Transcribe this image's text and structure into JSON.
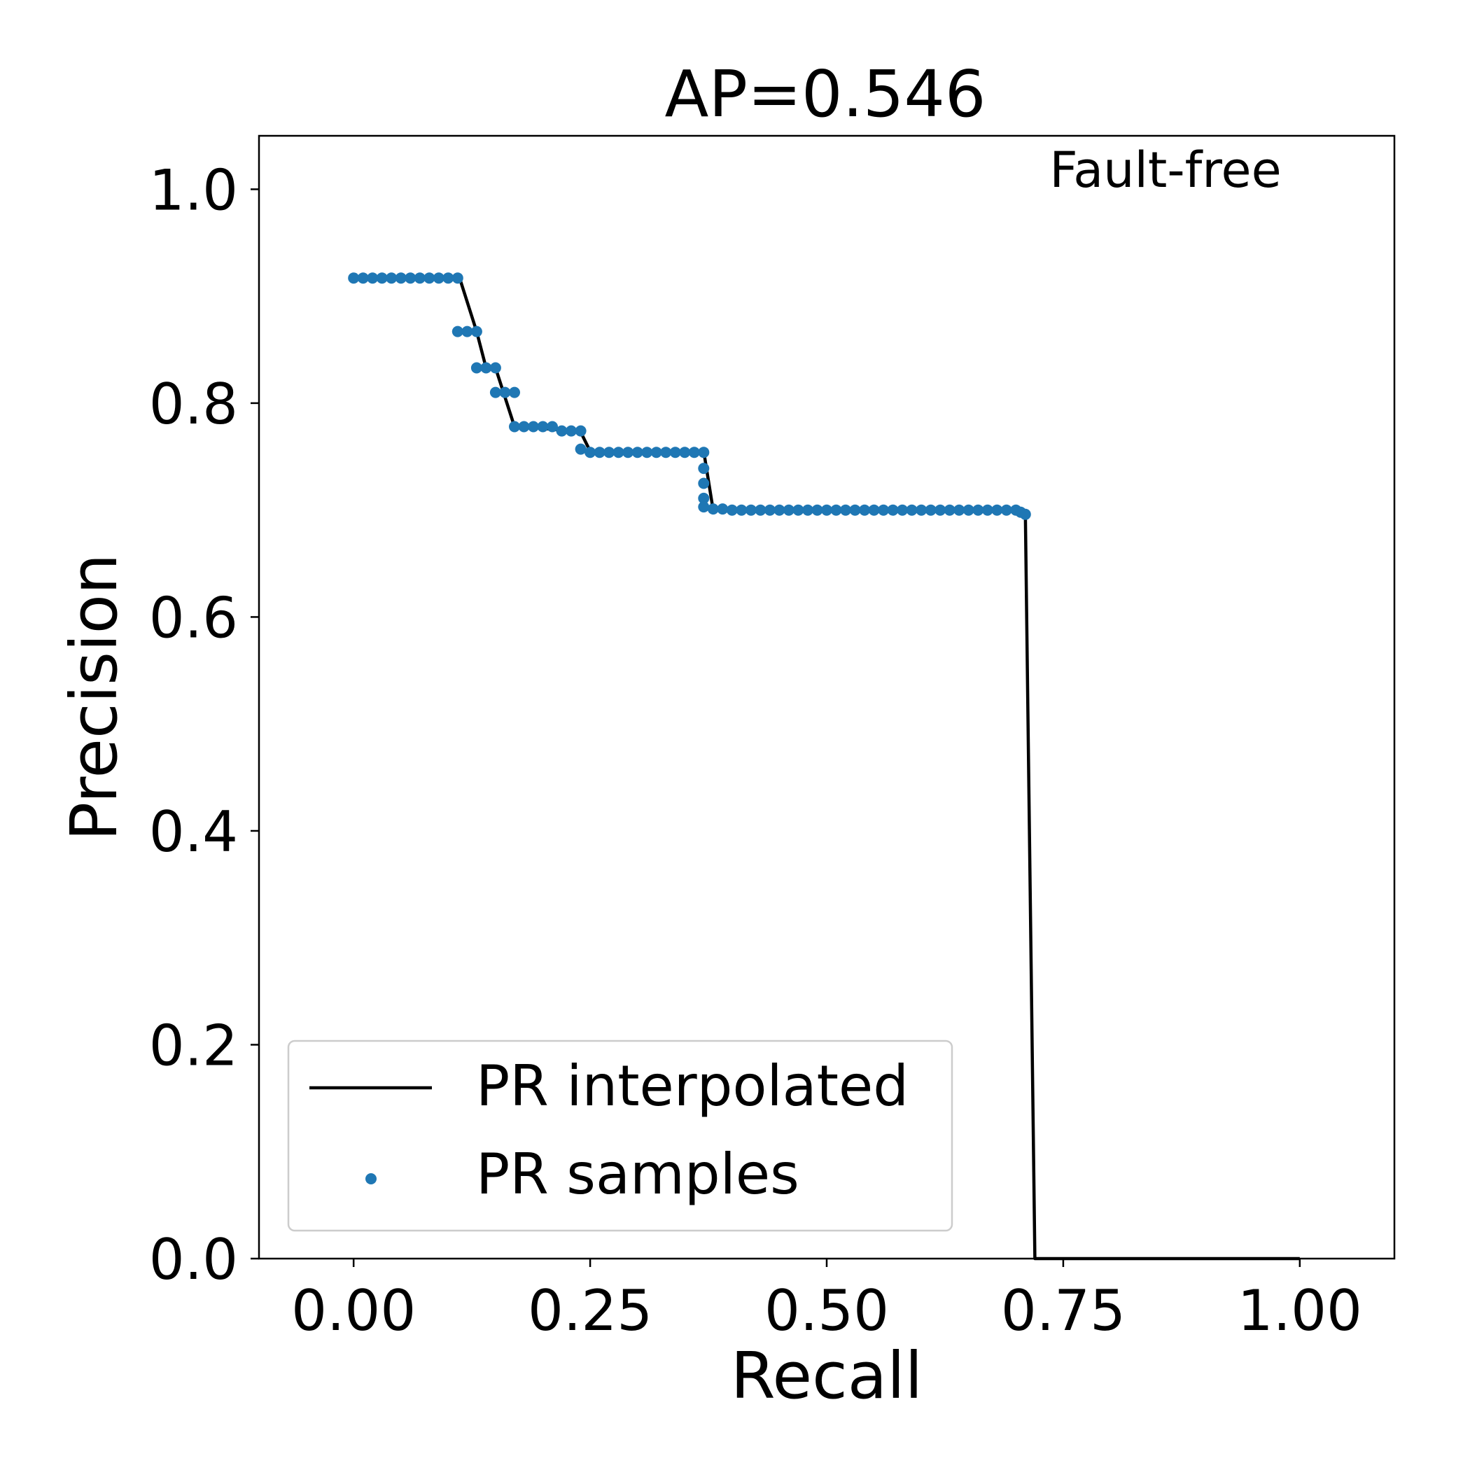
{
  "chart_data": {
    "type": "line",
    "title": "AP=0.546",
    "xlabel": "Recall",
    "ylabel": "Precision",
    "annotation": "Fault-free",
    "xlim": [
      -0.1,
      1.1
    ],
    "ylim": [
      0.0,
      1.05
    ],
    "xticks": [
      0.0,
      0.25,
      0.5,
      0.75,
      1.0
    ],
    "xtick_labels": [
      "0.00",
      "0.25",
      "0.50",
      "0.75",
      "1.00"
    ],
    "yticks": [
      0.0,
      0.2,
      0.4,
      0.6,
      0.8,
      1.0
    ],
    "ytick_labels": [
      "0.0",
      "0.2",
      "0.4",
      "0.6",
      "0.8",
      "1.0"
    ],
    "grid": false,
    "legend_position": "lower-left",
    "series": [
      {
        "name": "PR interpolated",
        "style": "line",
        "color": "#000000",
        "x": [
          0.0,
          0.11,
          0.112,
          0.13,
          0.14,
          0.15,
          0.17,
          0.18,
          0.24,
          0.25,
          0.37,
          0.38,
          0.7,
          0.71,
          0.72,
          1.0
        ],
        "y": [
          0.917,
          0.917,
          0.917,
          0.867,
          0.833,
          0.833,
          0.778,
          0.778,
          0.773,
          0.755,
          0.755,
          0.7,
          0.7,
          0.697,
          0.0,
          0.0
        ]
      },
      {
        "name": "PR samples",
        "style": "scatter",
        "color": "#1f77b4",
        "x": [
          0.0,
          0.01,
          0.02,
          0.03,
          0.04,
          0.05,
          0.06,
          0.07,
          0.08,
          0.09,
          0.1,
          0.11,
          0.11,
          0.12,
          0.13,
          0.13,
          0.14,
          0.15,
          0.15,
          0.16,
          0.17,
          0.17,
          0.18,
          0.19,
          0.2,
          0.21,
          0.22,
          0.23,
          0.24,
          0.24,
          0.25,
          0.26,
          0.27,
          0.28,
          0.29,
          0.3,
          0.31,
          0.32,
          0.33,
          0.34,
          0.35,
          0.36,
          0.37,
          0.37,
          0.37,
          0.37,
          0.37,
          0.38,
          0.39,
          0.4,
          0.41,
          0.42,
          0.43,
          0.44,
          0.45,
          0.46,
          0.47,
          0.48,
          0.49,
          0.5,
          0.51,
          0.52,
          0.53,
          0.54,
          0.55,
          0.56,
          0.57,
          0.58,
          0.59,
          0.6,
          0.61,
          0.62,
          0.63,
          0.64,
          0.65,
          0.66,
          0.67,
          0.68,
          0.69,
          0.7,
          0.705,
          0.71
        ],
        "y": [
          0.917,
          0.917,
          0.917,
          0.917,
          0.917,
          0.917,
          0.917,
          0.917,
          0.917,
          0.917,
          0.917,
          0.917,
          0.867,
          0.867,
          0.867,
          0.833,
          0.833,
          0.833,
          0.81,
          0.81,
          0.81,
          0.778,
          0.778,
          0.778,
          0.778,
          0.778,
          0.774,
          0.774,
          0.774,
          0.757,
          0.754,
          0.754,
          0.754,
          0.754,
          0.754,
          0.754,
          0.754,
          0.754,
          0.754,
          0.754,
          0.754,
          0.754,
          0.754,
          0.739,
          0.725,
          0.711,
          0.703,
          0.701,
          0.701,
          0.7,
          0.7,
          0.7,
          0.7,
          0.7,
          0.7,
          0.7,
          0.7,
          0.7,
          0.7,
          0.7,
          0.7,
          0.7,
          0.7,
          0.7,
          0.7,
          0.7,
          0.7,
          0.7,
          0.7,
          0.7,
          0.7,
          0.7,
          0.7,
          0.7,
          0.7,
          0.7,
          0.7,
          0.7,
          0.7,
          0.7,
          0.698,
          0.696
        ]
      }
    ]
  }
}
